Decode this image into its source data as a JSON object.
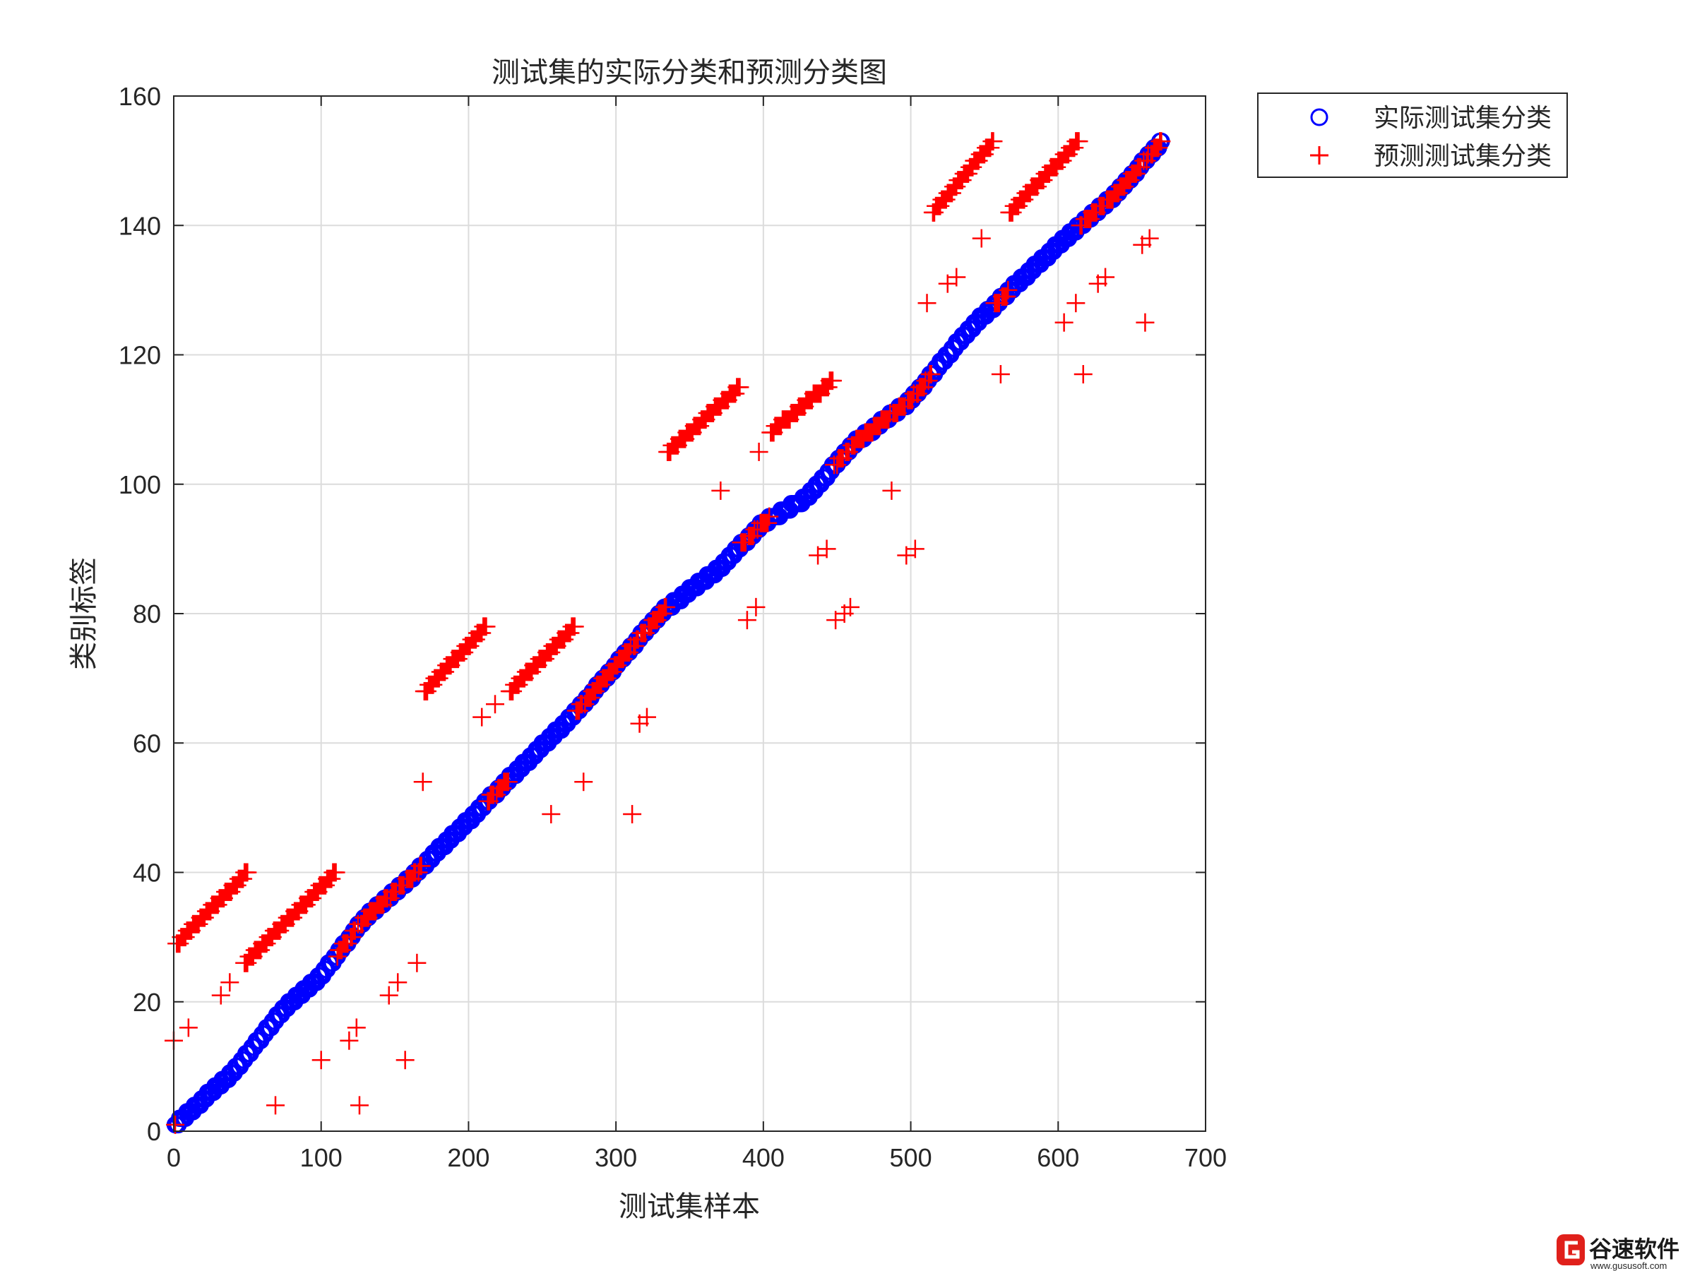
{
  "chart_data": {
    "type": "scatter",
    "title": "测试集的实际分类和预测分类图",
    "xlabel": "测试集样本",
    "ylabel": "类别标签",
    "xlim": [
      0,
      700
    ],
    "ylim": [
      0,
      160
    ],
    "xticks": [
      0,
      100,
      200,
      300,
      400,
      500,
      600,
      700
    ],
    "yticks": [
      0,
      20,
      40,
      60,
      80,
      100,
      120,
      140,
      160
    ],
    "grid": true,
    "legend_position": "outside-top-right",
    "series": [
      {
        "name": "实际测试集分类",
        "marker": "circle",
        "color": "#0000ff",
        "segments": [
          [
            1,
            1
          ],
          [
            40,
            9
          ],
          [
            75,
            19
          ],
          [
            100,
            24
          ],
          [
            130,
            33
          ],
          [
            160,
            39
          ],
          [
            200,
            48
          ],
          [
            230,
            55
          ],
          [
            270,
            64
          ],
          [
            300,
            72
          ],
          [
            330,
            80
          ],
          [
            370,
            87
          ],
          [
            400,
            94
          ],
          [
            430,
            98
          ],
          [
            460,
            106
          ],
          [
            500,
            113
          ],
          [
            540,
            124
          ],
          [
            600,
            137
          ],
          [
            640,
            145
          ],
          [
            670,
            153
          ]
        ],
        "count": 670
      },
      {
        "name": "预测测试集分类",
        "marker": "plus",
        "color": "#ff0000",
        "offset_runs": [
          [
            [
              2,
              29
            ],
            [
              50,
              40
            ]
          ],
          [
            [
              48,
              26
            ],
            [
              110,
              40
            ]
          ],
          [
            [
              170,
              68
            ],
            [
              212,
              78
            ]
          ],
          [
            [
              228,
              68
            ],
            [
              272,
              78
            ]
          ],
          [
            [
              335,
              105
            ],
            [
              384,
              115
            ]
          ],
          [
            [
              405,
              108
            ],
            [
              447,
              116
            ]
          ],
          [
            [
              515,
              142
            ],
            [
              556,
              153
            ]
          ],
          [
            [
              567,
              142
            ],
            [
              614,
              153
            ]
          ]
        ],
        "outliers": [
          [
            0,
            14
          ],
          [
            10,
            16
          ],
          [
            32,
            21
          ],
          [
            38,
            23
          ],
          [
            69,
            4
          ],
          [
            100,
            11
          ],
          [
            119,
            14
          ],
          [
            124,
            16
          ],
          [
            126,
            4
          ],
          [
            146,
            21
          ],
          [
            152,
            23
          ],
          [
            157,
            11
          ],
          [
            165,
            26
          ],
          [
            169,
            54
          ],
          [
            209,
            64
          ],
          [
            218,
            66
          ],
          [
            256,
            49
          ],
          [
            278,
            54
          ],
          [
            311,
            49
          ],
          [
            316,
            63
          ],
          [
            321,
            64
          ],
          [
            371,
            99
          ],
          [
            389,
            79
          ],
          [
            395,
            81
          ],
          [
            397,
            105
          ],
          [
            437,
            89
          ],
          [
            443,
            90
          ],
          [
            449,
            79
          ],
          [
            455,
            80
          ],
          [
            459,
            81
          ],
          [
            487,
            99
          ],
          [
            497,
            89
          ],
          [
            503,
            90
          ],
          [
            511,
            128
          ],
          [
            525,
            131
          ],
          [
            531,
            132
          ],
          [
            548,
            138
          ],
          [
            561,
            117
          ],
          [
            604,
            125
          ],
          [
            612,
            128
          ],
          [
            617,
            117
          ],
          [
            627,
            131
          ],
          [
            632,
            132
          ],
          [
            657,
            137
          ],
          [
            662,
            138
          ],
          [
            659,
            125
          ]
        ]
      }
    ]
  },
  "watermark": {
    "brand": "谷速软件",
    "url": "www.gususoft.com"
  }
}
